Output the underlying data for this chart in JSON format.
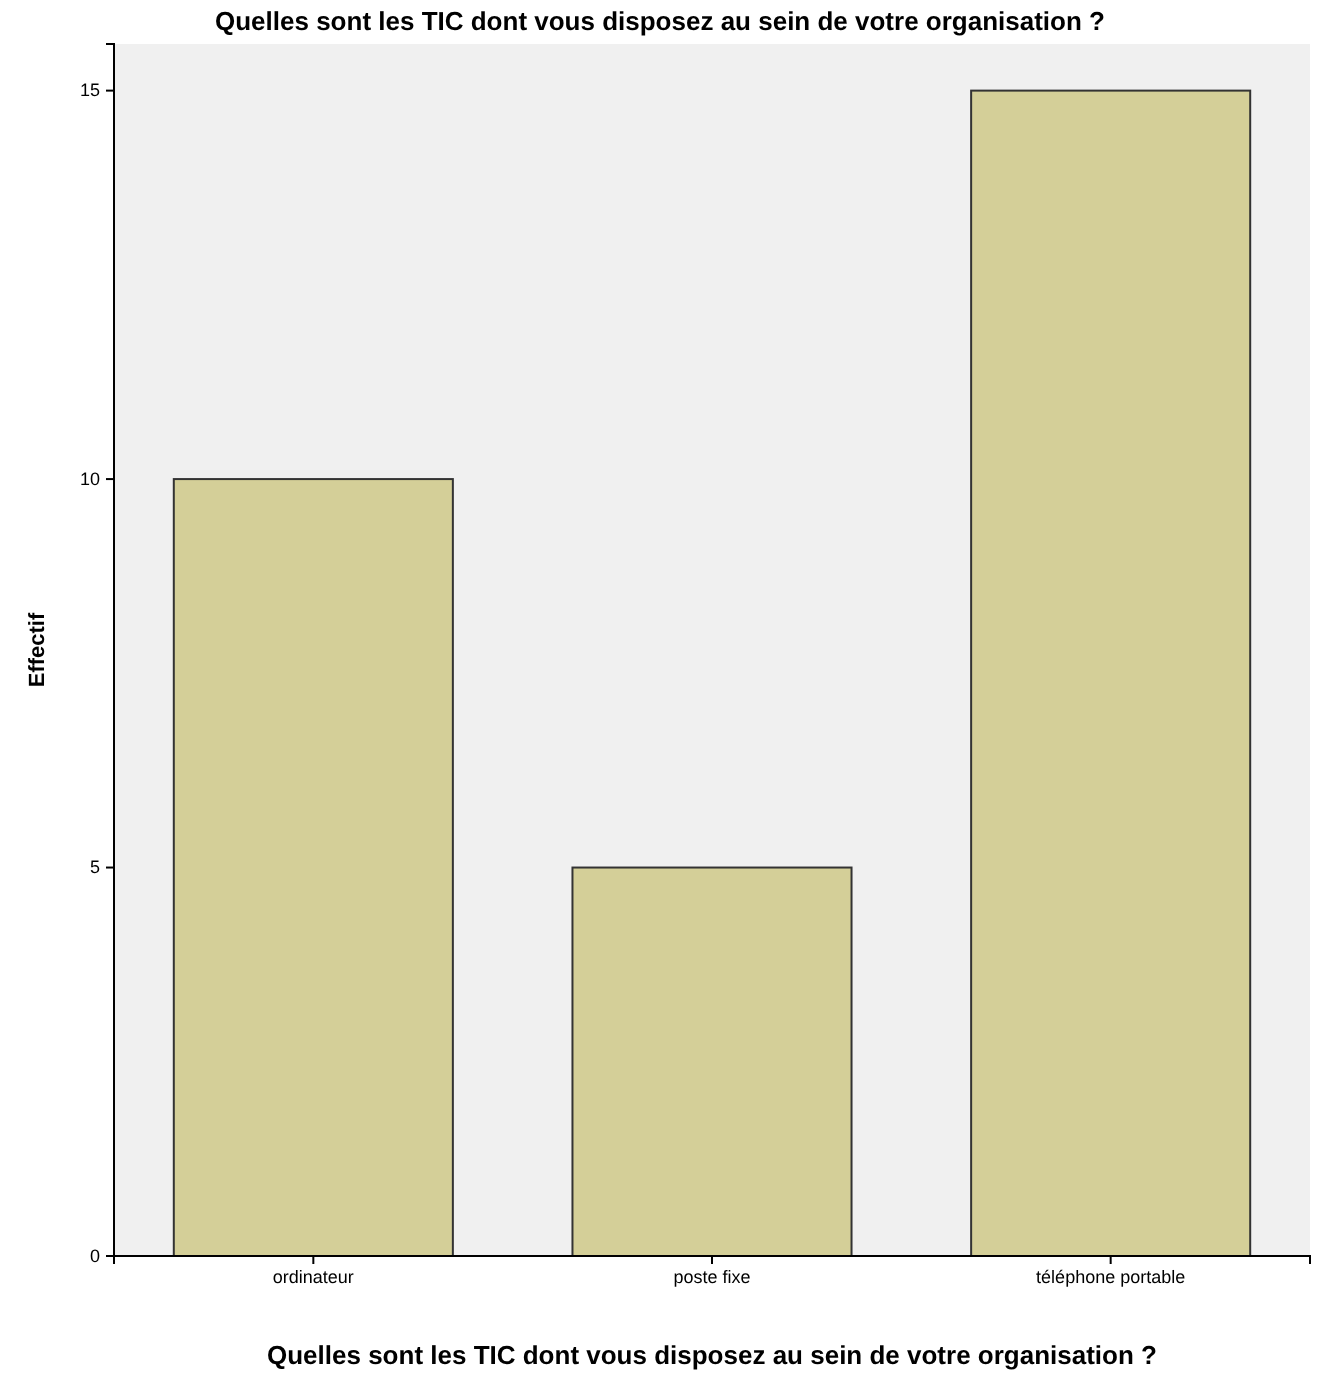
{
  "chart_data": {
    "type": "bar",
    "title": "Quelles sont les TIC dont vous disposez au sein de votre organisation ?",
    "xlabel": "Quelles sont les TIC dont vous disposez au sein de votre organisation ?",
    "ylabel": "Effectif",
    "categories": [
      "ordinateur",
      "poste fixe",
      "téléphone portable"
    ],
    "values": [
      10,
      5,
      15
    ],
    "color": "#d4cf98",
    "ylim": [
      0,
      15.6
    ],
    "yticks": [
      0,
      5,
      10,
      15
    ],
    "grid": false
  }
}
